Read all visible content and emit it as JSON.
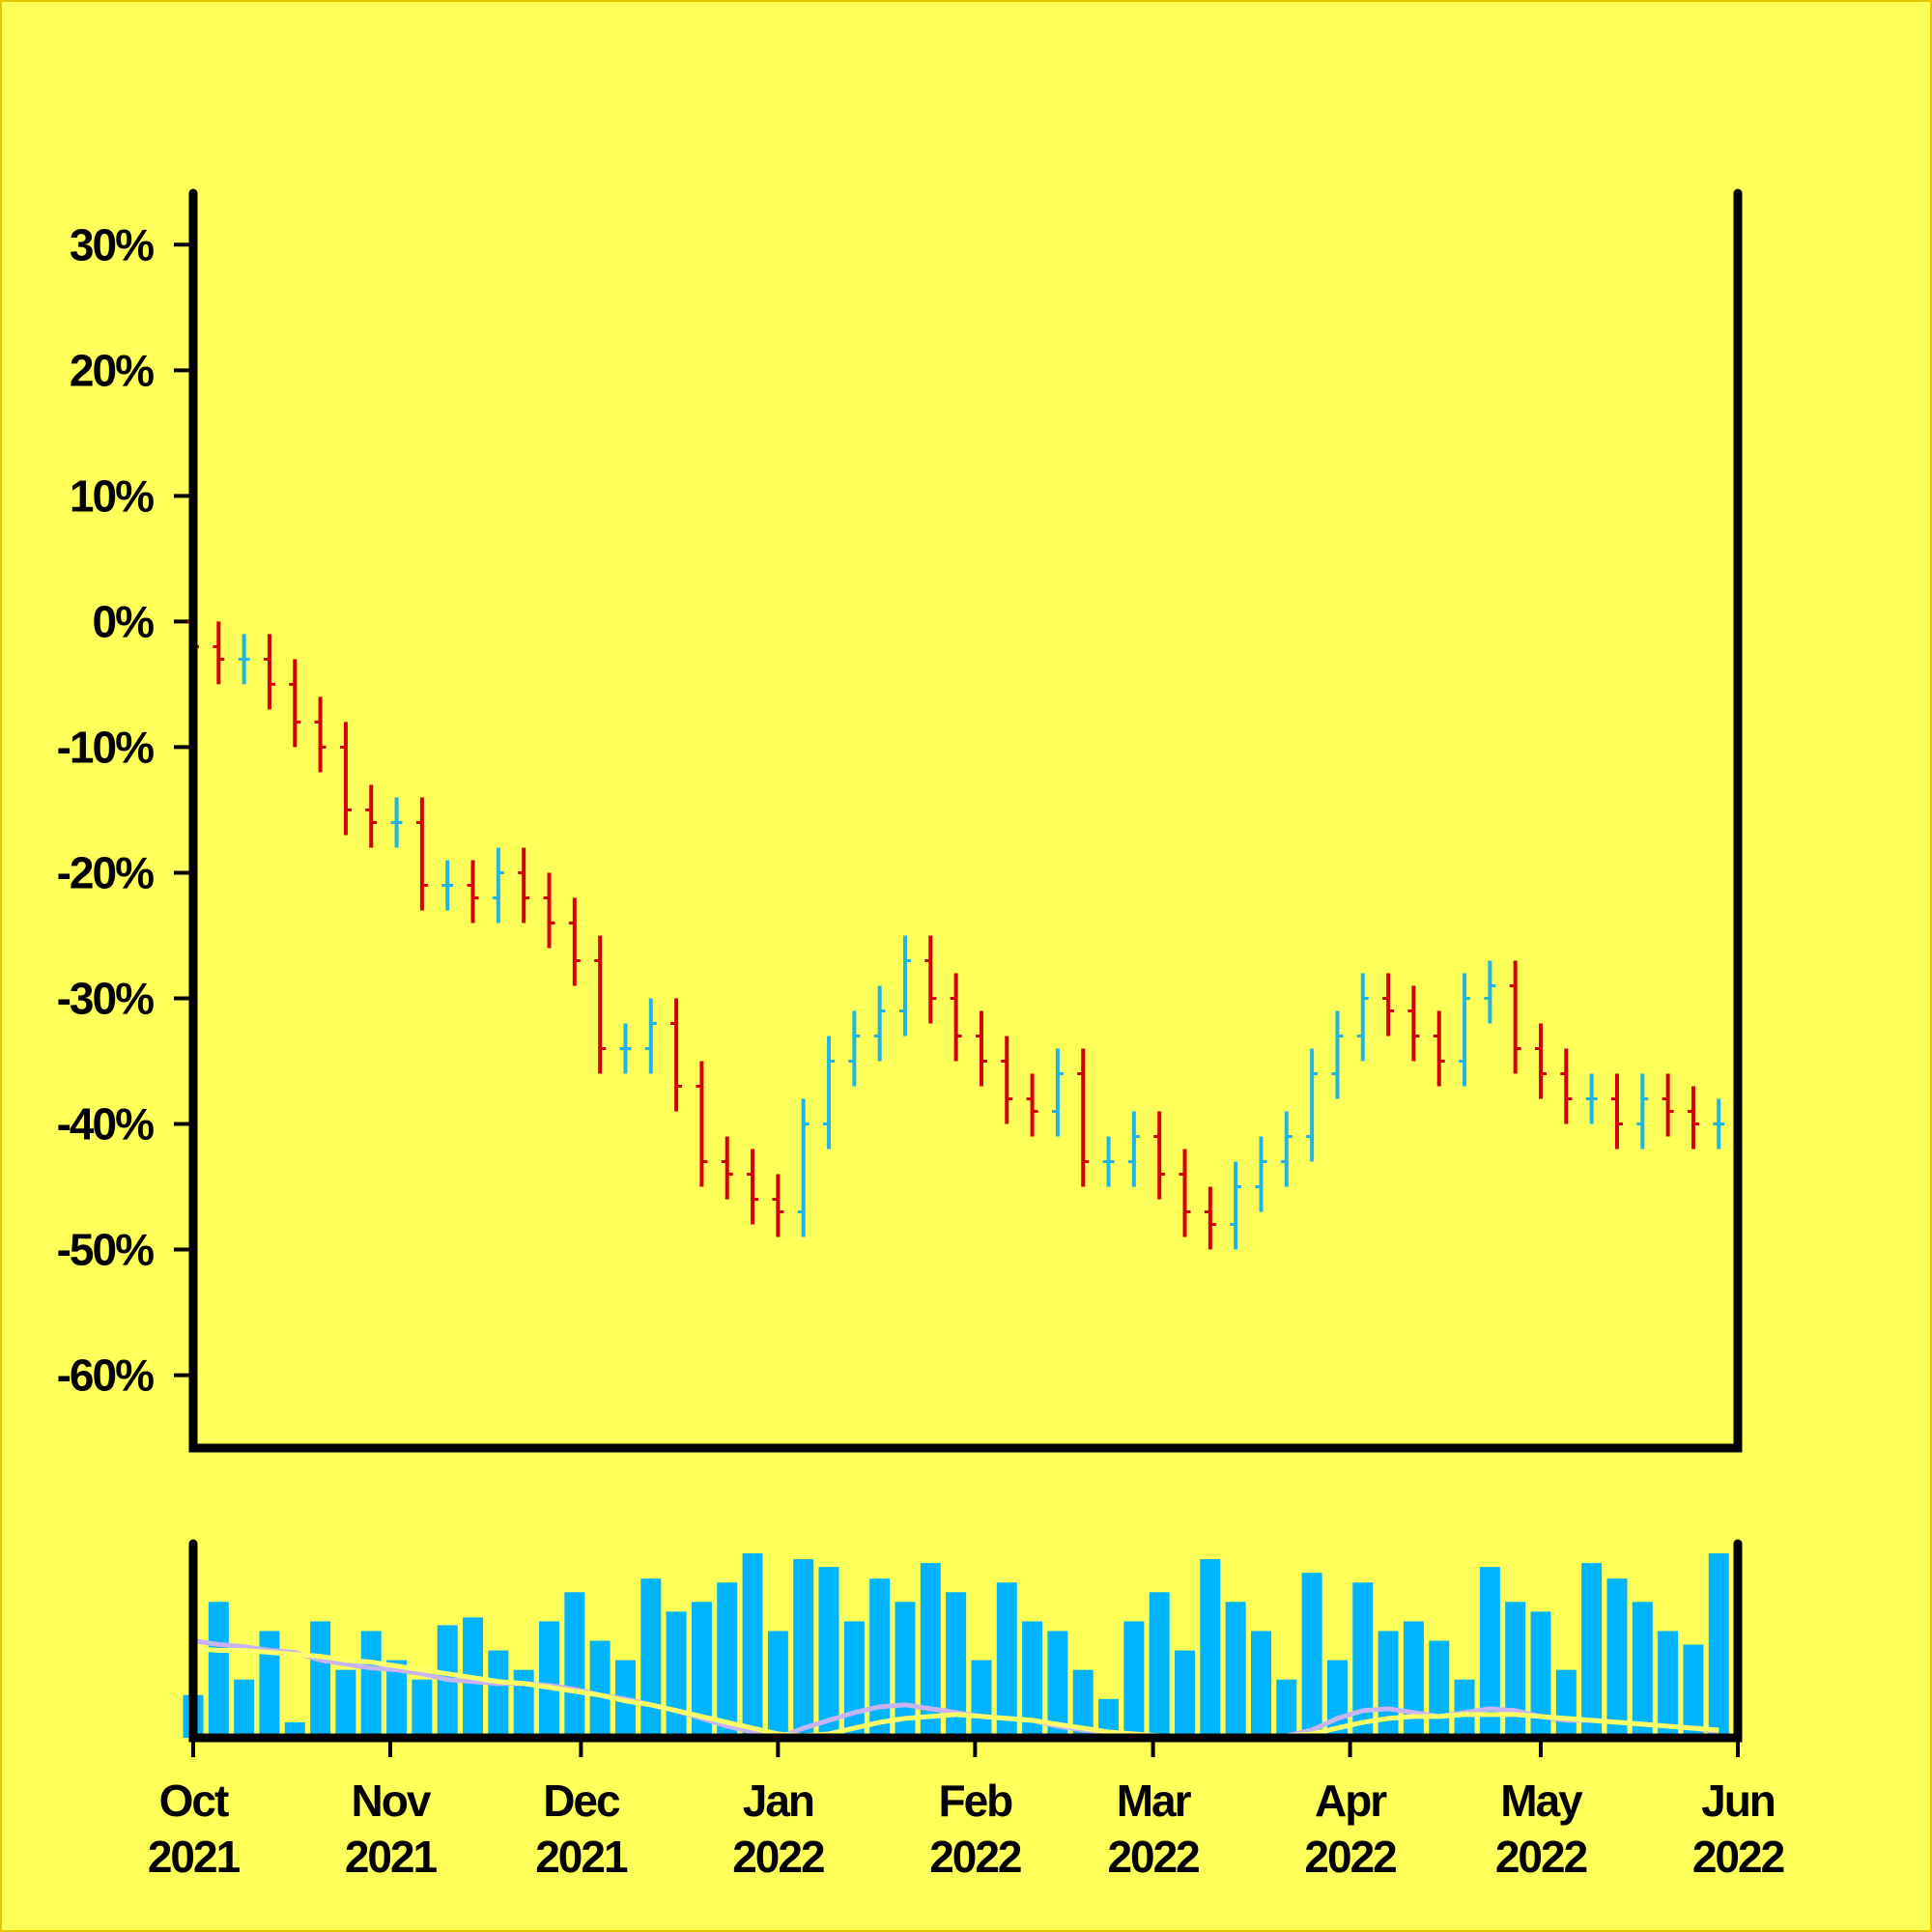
{
  "chart_data": [
    {
      "type": "ohlc",
      "x": [
        0,
        4,
        8,
        12,
        16,
        20,
        24,
        28,
        32,
        36,
        40,
        44,
        48,
        52,
        56,
        60,
        64,
        68,
        72,
        76,
        80,
        84,
        88,
        92,
        96,
        100,
        104,
        108,
        112,
        116,
        120,
        124,
        128,
        132,
        136,
        140,
        144,
        148,
        152,
        156,
        160,
        164,
        168,
        172,
        176,
        180,
        184,
        188,
        192,
        196,
        200,
        204,
        208,
        212,
        216,
        220,
        224,
        228,
        232,
        236,
        240
      ],
      "open": [
        0,
        -2,
        -3,
        -3,
        -5,
        -8,
        -10,
        -15,
        -16,
        -16,
        -21,
        -21,
        -22,
        -20,
        -22,
        -24,
        -27,
        -34,
        -34,
        -32,
        -37,
        -43,
        -44,
        -46,
        -47,
        -40,
        -35,
        -33,
        -31,
        -27,
        -30,
        -33,
        -35,
        -38,
        -39,
        -36,
        -43,
        -43,
        -41,
        -44,
        -47,
        -48,
        -45,
        -43,
        -41,
        -36,
        -33,
        -30,
        -31,
        -33,
        -35,
        -30,
        -29,
        -34,
        -36,
        -38,
        -38,
        -40,
        -38,
        -39,
        -40
      ],
      "high": [
        4,
        0,
        -1,
        -1,
        -3,
        -6,
        -8,
        -13,
        -14,
        -14,
        -19,
        -19,
        -18,
        -18,
        -20,
        -22,
        -25,
        -32,
        -30,
        -30,
        -35,
        -41,
        -42,
        -44,
        -38,
        -33,
        -31,
        -29,
        -25,
        -25,
        -28,
        -31,
        -33,
        -36,
        -34,
        -34,
        -41,
        -39,
        -39,
        -42,
        -45,
        -43,
        -41,
        -39,
        -34,
        -31,
        -28,
        -28,
        -29,
        -31,
        -28,
        -27,
        -27,
        -32,
        -34,
        -36,
        -36,
        -36,
        -36,
        -37,
        -38
      ],
      "low": [
        -4,
        -5,
        -5,
        -7,
        -10,
        -12,
        -17,
        -18,
        -18,
        -23,
        -23,
        -24,
        -24,
        -24,
        -26,
        -29,
        -36,
        -36,
        -36,
        -39,
        -45,
        -46,
        -48,
        -49,
        -49,
        -42,
        -37,
        -35,
        -33,
        -32,
        -35,
        -37,
        -40,
        -41,
        -41,
        -45,
        -45,
        -45,
        -46,
        -49,
        -50,
        -50,
        -47,
        -45,
        -43,
        -38,
        -35,
        -33,
        -35,
        -37,
        -37,
        -32,
        -36,
        -38,
        -40,
        -40,
        -42,
        -42,
        -41,
        -42,
        -42
      ],
      "close": [
        -2,
        -3,
        -3,
        -5,
        -8,
        -10,
        -15,
        -16,
        -16,
        -21,
        -21,
        -22,
        -20,
        -22,
        -24,
        -27,
        -34,
        -34,
        -32,
        -37,
        -43,
        -44,
        -46,
        -47,
        -40,
        -35,
        -33,
        -31,
        -27,
        -30,
        -33,
        -35,
        -38,
        -39,
        -36,
        -43,
        -43,
        -41,
        -44,
        -47,
        -48,
        -45,
        -43,
        -41,
        -36,
        -33,
        -30,
        -31,
        -33,
        -35,
        -30,
        -29,
        -34,
        -36,
        -38,
        -38,
        -40,
        -38,
        -39,
        -40,
        -40
      ],
      "up_color": "#1fb4e8",
      "down_color": "#d40000",
      "xlim": [
        0,
        243
      ],
      "xticks": [
        {
          "value": 0,
          "label": "Oct 2021"
        },
        {
          "value": 31,
          "label": "Nov 2021"
        },
        {
          "value": 61,
          "label": "Dec 2021"
        },
        {
          "value": 92,
          "label": "Jan 2022"
        },
        {
          "value": 123,
          "label": "Feb 2022"
        },
        {
          "value": 151,
          "label": "Mar 2022"
        },
        {
          "value": 182,
          "label": "Apr 2022"
        },
        {
          "value": 212,
          "label": "May 2022"
        },
        {
          "value": 243,
          "label": "Jun 2022"
        }
      ],
      "ylim": [
        -65.8,
        34.1
      ],
      "yticks": [
        {
          "value": 30,
          "label": "30%"
        },
        {
          "value": 20,
          "label": "20%"
        },
        {
          "value": 10,
          "label": "10%"
        },
        {
          "value": 0,
          "label": "0%"
        },
        {
          "value": -10,
          "label": "-10%"
        },
        {
          "value": -20,
          "label": "-20%"
        },
        {
          "value": -30,
          "label": "-30%"
        },
        {
          "value": -40,
          "label": "-40%"
        },
        {
          "value": -50,
          "label": "-50%"
        },
        {
          "value": -60,
          "label": "-60%"
        }
      ]
    },
    {
      "type": "volume",
      "values": [
        22,
        70,
        30,
        55,
        8,
        60,
        35,
        55,
        40,
        30,
        58,
        62,
        45,
        35,
        60,
        75,
        50,
        40,
        82,
        65,
        70,
        80,
        95,
        55,
        92,
        88,
        60,
        82,
        70,
        90,
        75,
        40,
        80,
        60,
        55,
        35,
        20,
        60,
        75,
        45,
        92,
        70,
        55,
        30,
        85,
        40,
        80,
        55,
        60,
        50,
        30,
        88,
        70,
        65,
        35,
        90,
        82,
        70,
        55,
        48,
        95
      ],
      "color": "#00b4ff",
      "lines": [
        {
          "color": "#c8b4f0",
          "values": [
            50,
            48,
            47,
            45,
            44,
            40,
            38,
            36,
            35,
            33,
            30,
            29,
            28,
            28,
            27,
            25,
            22,
            20,
            17,
            14,
            10,
            6,
            3,
            0,
            5,
            9,
            13,
            16,
            17,
            15,
            13,
            11,
            10,
            9,
            6,
            4,
            3,
            2,
            1,
            0,
            0,
            0,
            0,
            1,
            4,
            10,
            14,
            15,
            13,
            11,
            13,
            15,
            14,
            11,
            9,
            9,
            8,
            7,
            6,
            5,
            3
          ]
        },
        {
          "color": "#ffff66",
          "values": [
            46,
            45,
            45,
            44,
            43,
            42,
            40,
            39,
            37,
            35,
            33,
            31,
            29,
            28,
            26,
            24,
            22,
            19,
            17,
            14,
            11,
            8,
            5,
            2,
            1,
            2,
            5,
            8,
            10,
            11,
            12,
            11,
            10,
            9,
            7,
            5,
            3,
            2,
            1,
            1,
            0,
            0,
            0,
            1,
            2,
            5,
            8,
            10,
            11,
            11,
            12,
            12,
            12,
            11,
            10,
            9,
            8,
            7,
            6,
            5,
            4
          ]
        }
      ],
      "ylim": [
        0,
        100
      ]
    }
  ]
}
